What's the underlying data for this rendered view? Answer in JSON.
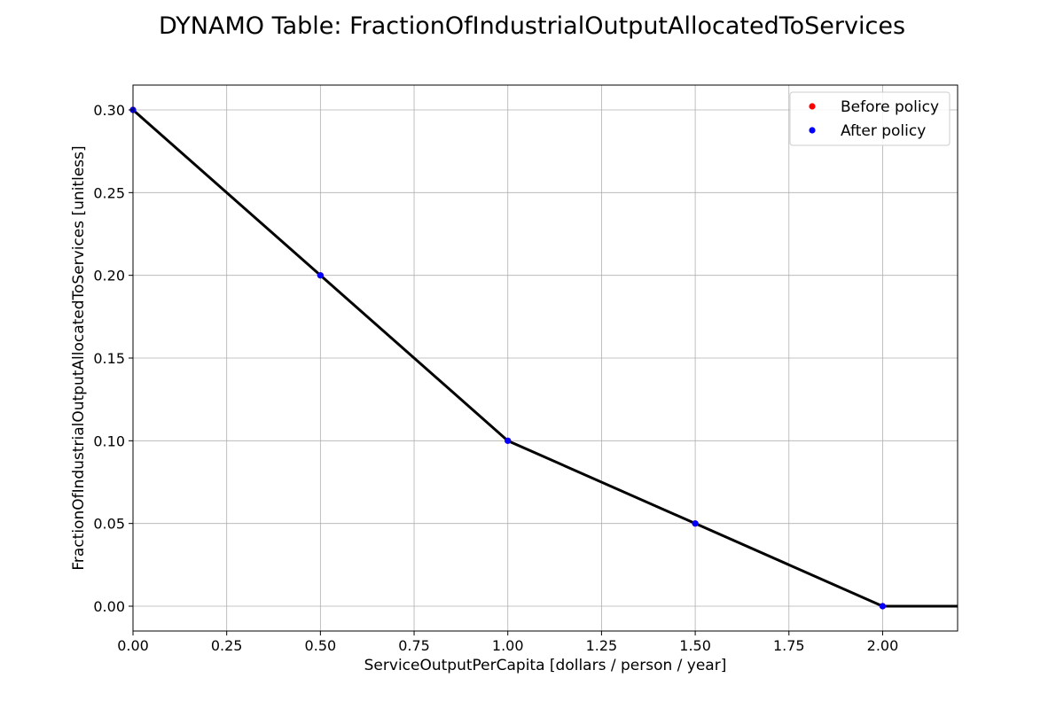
{
  "chart_data": {
    "type": "line",
    "title": "DYNAMO Table: FractionOfIndustrialOutputAllocatedToServices",
    "xlabel": "ServiceOutputPerCapita [dollars / person / year]",
    "ylabel": "FractionOfIndustrialOutputAllocatedToServices [unitless]",
    "xlim": [
      0,
      2.2
    ],
    "ylim": [
      -0.015,
      0.315
    ],
    "grid": true,
    "legend_position": "top-right",
    "x_ticks": [
      0,
      0.25,
      0.5,
      0.75,
      1.0,
      1.25,
      1.5,
      1.75,
      2.0
    ],
    "x_tick_labels": [
      "0.00",
      "0.25",
      "0.50",
      "0.75",
      "1.00",
      "1.25",
      "1.50",
      "1.75",
      "2.00"
    ],
    "y_ticks": [
      0,
      0.05,
      0.1,
      0.15,
      0.2,
      0.25,
      0.3
    ],
    "y_tick_labels": [
      "0.00",
      "0.05",
      "0.10",
      "0.15",
      "0.20",
      "0.25",
      "0.30"
    ],
    "line": {
      "color": "#000000",
      "x": [
        0,
        0.5,
        1.0,
        1.5,
        2.0,
        2.2
      ],
      "y": [
        0.3,
        0.2,
        0.1,
        0.05,
        0.0,
        0.0
      ]
    },
    "series": [
      {
        "name": "Before policy",
        "color": "#ff0000",
        "x": [
          0,
          0.5,
          1.0,
          1.5,
          2.0
        ],
        "y": [
          0.3,
          0.2,
          0.1,
          0.05,
          0.0
        ]
      },
      {
        "name": "After policy",
        "color": "#0000ff",
        "x": [
          0,
          0.5,
          1.0,
          1.5,
          2.0
        ],
        "y": [
          0.3,
          0.2,
          0.1,
          0.05,
          0.0
        ]
      }
    ]
  }
}
